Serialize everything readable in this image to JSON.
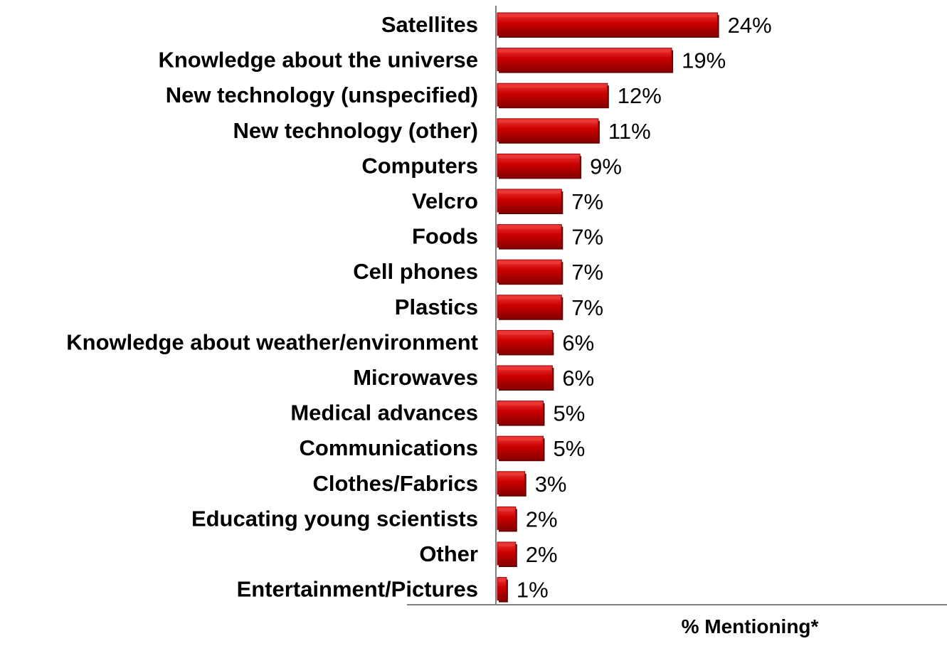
{
  "chart_data": {
    "type": "bar",
    "orientation": "horizontal",
    "categories": [
      "Satellites",
      "Knowledge about the universe",
      "New technology (unspecified)",
      "New technology (other)",
      "Computers",
      "Velcro",
      "Foods",
      "Cell phones",
      "Plastics",
      "Knowledge about weather/environment",
      "Microwaves",
      "Medical advances",
      "Communications",
      "Clothes/Fabrics",
      "Educating young scientists",
      "Other",
      "Entertainment/Pictures"
    ],
    "values": [
      24,
      19,
      12,
      11,
      9,
      7,
      7,
      7,
      7,
      6,
      6,
      5,
      5,
      3,
      2,
      2,
      1
    ],
    "value_labels": [
      "24%",
      "19%",
      "12%",
      "11%",
      "9%",
      "7%",
      "7%",
      "7%",
      "7%",
      "6%",
      "6%",
      "5%",
      "5%",
      "3%",
      "2%",
      "2%",
      "1%"
    ],
    "xlabel": "% Mentioning*",
    "ylabel": "",
    "xlim": [
      0,
      50
    ],
    "grid": false,
    "legend": "none",
    "colors": {
      "bar_fill": "#cc0000",
      "bar_highlight": "#ee3a3a",
      "bar_shadow": "#6e0000",
      "axis": "#808080",
      "text": "#000000"
    }
  }
}
